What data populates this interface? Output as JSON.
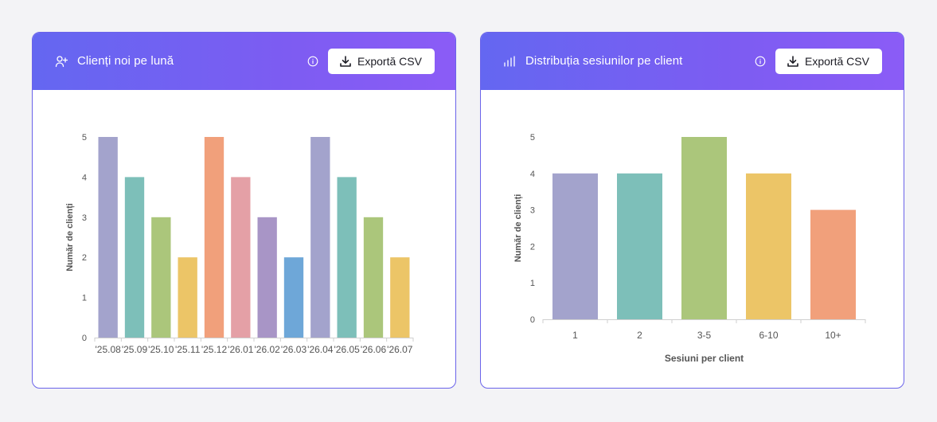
{
  "colors": {
    "header_start": "#6467f1",
    "header_end": "#8b5cf6",
    "card_border": "#6a63ea",
    "palette": [
      "#a3a3cc",
      "#7dbfb9",
      "#abc67b",
      "#ecc567",
      "#f1a07b",
      "#e4a0a6",
      "#a895c6",
      "#6ea7d8"
    ]
  },
  "cards": [
    {
      "title": "Clienți noi pe lună",
      "title_icon": "user-plus-icon",
      "info_icon": "info-icon",
      "export_label": "Exportă CSV",
      "export_icon": "download-icon",
      "chart_data": {
        "type": "bar",
        "categories": [
          "'25.08",
          "'25.09",
          "'25.10",
          "'25.11",
          "'25.12",
          "'26.01",
          "'26.02",
          "'26.03",
          "'26.04",
          "'26.05",
          "'26.06",
          "'26.07"
        ],
        "values": [
          5,
          4,
          3,
          2,
          5,
          4,
          3,
          2,
          5,
          4,
          3,
          2
        ],
        "colors": [
          "#a3a3cc",
          "#7dbfb9",
          "#abc67b",
          "#ecc567",
          "#f1a07b",
          "#e4a0a6",
          "#a895c6",
          "#6ea7d8",
          "#a3a3cc",
          "#7dbfb9",
          "#abc67b",
          "#ecc567"
        ],
        "xlabel": "",
        "ylabel": "Număr de clienți",
        "ylim": [
          0,
          5
        ],
        "yticks": [
          0,
          1,
          2,
          3,
          4,
          5
        ],
        "grid": false
      }
    },
    {
      "title": "Distribuția sesiunilor pe client",
      "title_icon": "bar-chart-icon",
      "info_icon": "info-icon",
      "export_label": "Exportă CSV",
      "export_icon": "download-icon",
      "chart_data": {
        "type": "bar",
        "categories": [
          "1",
          "2",
          "3-5",
          "6-10",
          "10+"
        ],
        "values": [
          4,
          4,
          5,
          4,
          3
        ],
        "colors": [
          "#a3a3cc",
          "#7dbfb9",
          "#abc67b",
          "#ecc567",
          "#f1a07b"
        ],
        "xlabel": "Sesiuni per client",
        "ylabel": "Număr de clienți",
        "ylim": [
          0,
          5
        ],
        "yticks": [
          0,
          1,
          2,
          3,
          4,
          5
        ],
        "grid": false
      }
    }
  ]
}
